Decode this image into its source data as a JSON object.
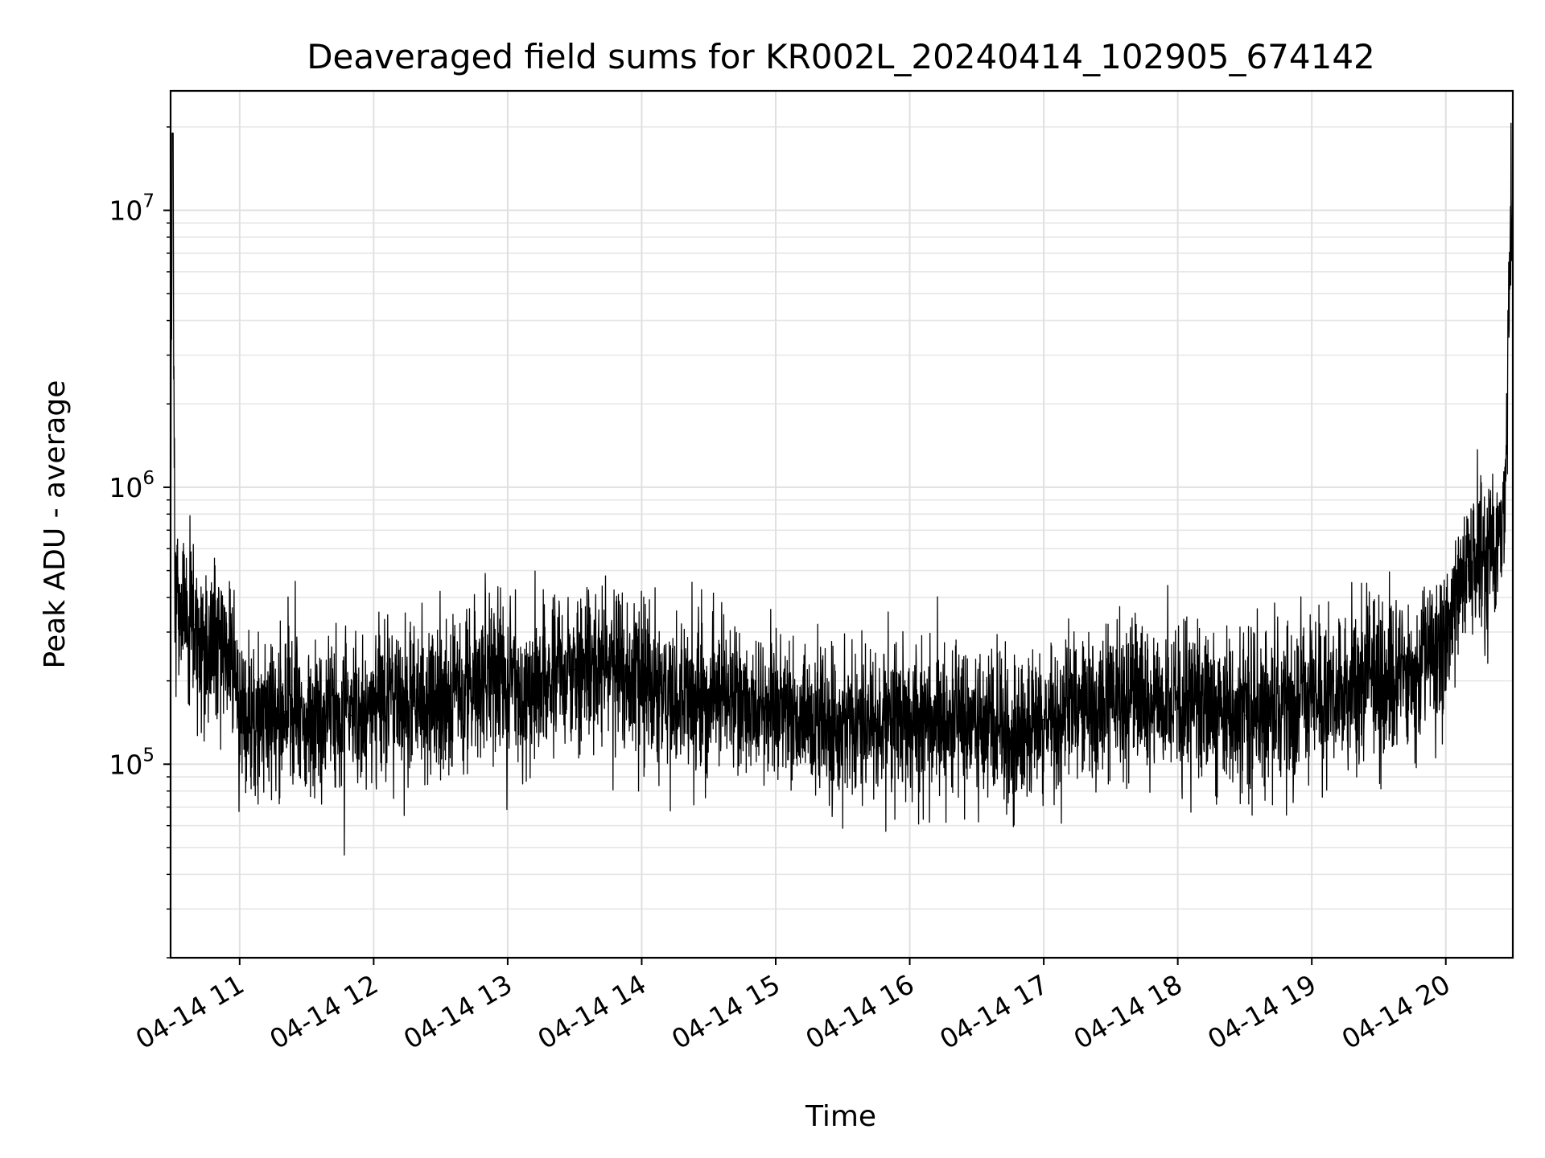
{
  "chart_data": {
    "type": "line",
    "title": "Deaveraged field sums for KR002L_20240414_102905_674142",
    "xlabel": "Time",
    "ylabel": "Peak ADU - average",
    "yscale": "log",
    "xlim": [
      "2024-04-14 10:29:05",
      "2024-04-14 20:30:00"
    ],
    "ylim": [
      20000,
      27000000
    ],
    "grid": true,
    "line_color": "#000000",
    "x_ticks": [
      {
        "value": "2024-04-14 11:00",
        "label": "04-14 11"
      },
      {
        "value": "2024-04-14 12:00",
        "label": "04-14 12"
      },
      {
        "value": "2024-04-14 13:00",
        "label": "04-14 13"
      },
      {
        "value": "2024-04-14 14:00",
        "label": "04-14 14"
      },
      {
        "value": "2024-04-14 15:00",
        "label": "04-14 15"
      },
      {
        "value": "2024-04-14 16:00",
        "label": "04-14 16"
      },
      {
        "value": "2024-04-14 17:00",
        "label": "04-14 17"
      },
      {
        "value": "2024-04-14 18:00",
        "label": "04-14 18"
      },
      {
        "value": "2024-04-14 19:00",
        "label": "04-14 19"
      },
      {
        "value": "2024-04-14 20:00",
        "label": "04-14 20"
      }
    ],
    "y_ticks": [
      {
        "value": 100000,
        "base": "10",
        "exp": "5"
      },
      {
        "value": 1000000,
        "base": "10",
        "exp": "6"
      },
      {
        "value": 10000000,
        "base": "10",
        "exp": "7"
      }
    ],
    "series": [
      {
        "x": [
          "10:29",
          "10:30",
          "10:31",
          "10:32",
          "10:33",
          "10:35",
          "10:37",
          "10:40",
          "10:45",
          "10:50",
          "10:55",
          "11:00",
          "11:10",
          "11:20",
          "11:30",
          "11:40",
          "11:50",
          "12:00",
          "12:15",
          "12:30",
          "12:45",
          "12:50",
          "13:00",
          "13:15",
          "13:30",
          "13:45",
          "14:00",
          "14:15",
          "14:30",
          "14:45",
          "15:00",
          "15:15",
          "15:30",
          "15:45",
          "16:00",
          "16:15",
          "16:30",
          "16:45",
          "17:00",
          "17:15",
          "17:30",
          "17:45",
          "18:00",
          "18:15",
          "18:30",
          "18:45",
          "19:00",
          "19:15",
          "19:30",
          "19:45",
          "20:00",
          "20:05",
          "20:10",
          "20:15",
          "20:20",
          "20:25",
          "20:27",
          "20:29"
        ],
        "y": [
          600000,
          19000000,
          350000,
          500000,
          300000,
          400000,
          280000,
          320000,
          250000,
          300000,
          260000,
          150000,
          140000,
          155000,
          145000,
          150000,
          150000,
          165000,
          175000,
          170000,
          190000,
          210000,
          185000,
          200000,
          220000,
          225000,
          215000,
          180000,
          175000,
          170000,
          160000,
          150000,
          140000,
          145000,
          140000,
          135000,
          135000,
          130000,
          145000,
          160000,
          165000,
          170000,
          175000,
          160000,
          150000,
          155000,
          170000,
          185000,
          200000,
          220000,
          250000,
          450000,
          520000,
          560000,
          600000,
          700000,
          1100000,
          9500000
        ]
      }
    ]
  }
}
